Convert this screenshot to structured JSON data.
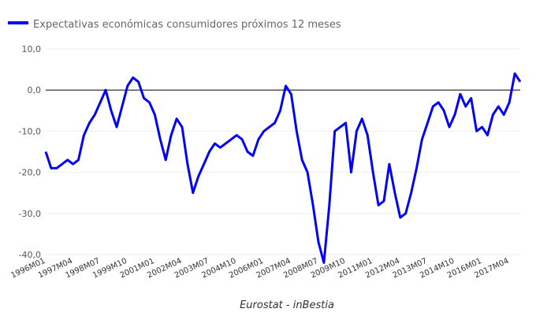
{
  "chart_data": {
    "type": "line",
    "series": [
      {
        "name": "Expectativas económicas consumidores próximos 12 meses",
        "color": "#0000ff",
        "x": [
          "1996M01",
          "1996M04",
          "1996M07",
          "1996M10",
          "1997M01",
          "1997M04",
          "1997M07",
          "1997M10",
          "1998M01",
          "1998M04",
          "1998M07",
          "1998M10",
          "1999M01",
          "1999M04",
          "1999M07",
          "1999M10",
          "2000M01",
          "2000M04",
          "2000M07",
          "2000M10",
          "2001M01",
          "2001M04",
          "2001M07",
          "2001M10",
          "2002M01",
          "2002M04",
          "2002M07",
          "2002M10",
          "2003M01",
          "2003M04",
          "2003M07",
          "2003M10",
          "2004M01",
          "2004M04",
          "2004M07",
          "2004M10",
          "2005M01",
          "2005M04",
          "2005M07",
          "2005M10",
          "2006M01",
          "2006M04",
          "2006M07",
          "2006M10",
          "2007M01",
          "2007M04",
          "2007M07",
          "2007M10",
          "2008M01",
          "2008M04",
          "2008M07",
          "2008M10",
          "2009M01",
          "2009M04",
          "2009M07",
          "2009M10",
          "2010M01",
          "2010M04",
          "2010M07",
          "2010M10",
          "2011M01",
          "2011M04",
          "2011M07",
          "2011M10",
          "2012M01",
          "2012M04",
          "2012M07",
          "2012M10",
          "2013M01",
          "2013M04",
          "2013M07",
          "2013M10",
          "2014M01",
          "2014M04",
          "2014M07",
          "2014M10",
          "2015M01",
          "2015M04",
          "2015M07",
          "2015M10",
          "2016M01",
          "2016M04",
          "2016M07",
          "2016M10",
          "2017M01",
          "2017M04",
          "2017M07",
          "2017M10"
        ],
        "values": [
          -15,
          -19,
          -19,
          -18,
          -17,
          -18,
          -17,
          -11,
          -8,
          -6,
          -3,
          0,
          -5,
          -9,
          -4,
          1,
          3,
          2,
          -2,
          -3,
          -6,
          -12,
          -17,
          -11,
          -7,
          -9,
          -18,
          -25,
          -21,
          -18,
          -15,
          -13,
          -14,
          -13,
          -12,
          -11,
          -12,
          -15,
          -16,
          -12,
          -10,
          -9,
          -8,
          -5,
          1,
          -1,
          -10,
          -17,
          -20,
          -28,
          -37,
          -42,
          -28,
          -10,
          -9,
          -8,
          -20,
          -10,
          -7,
          -11,
          -20,
          -28,
          -27,
          -18,
          -25,
          -31,
          -30,
          -25,
          -19,
          -12,
          -8,
          -4,
          -3,
          -5,
          -9,
          -6,
          -1,
          -4,
          -2,
          -10,
          -9,
          -11,
          -6,
          -4,
          -6,
          -3,
          4,
          2
        ]
      }
    ],
    "ylim": [
      -40,
      10
    ],
    "y_ticks": [
      10,
      0,
      -10,
      -20,
      -30,
      -40
    ],
    "y_tick_labels": [
      "10,0",
      "0,0",
      "-10,0",
      "-20,0",
      "-30,0",
      "-40,0"
    ],
    "x_tick_labels": [
      "1996M01",
      "1997M04",
      "1998M07",
      "1999M10",
      "2001M01",
      "2002M04",
      "2003M07",
      "2004M10",
      "2006M01",
      "2007M04",
      "2008M07",
      "2009M10",
      "2011M01",
      "2012M04",
      "2013M07",
      "2014M10",
      "2016M01",
      "2017M04"
    ],
    "xlabel": "",
    "ylabel": "",
    "legend_position": "top-left",
    "grid": true,
    "zero_line": true
  },
  "source": "Eurostat - inBestia"
}
